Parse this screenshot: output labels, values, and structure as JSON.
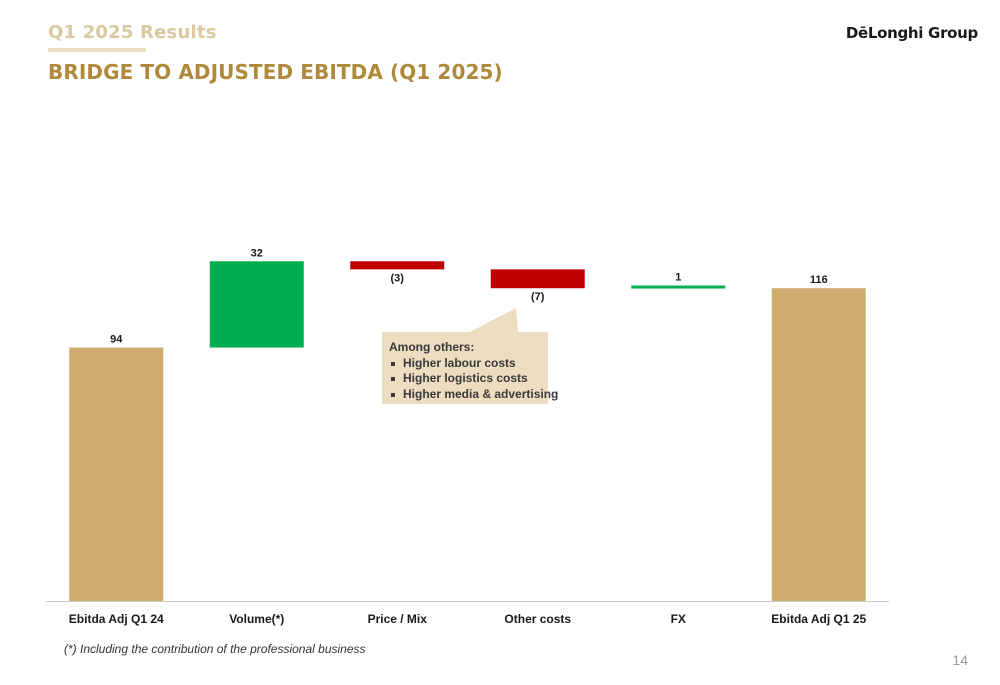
{
  "header": {
    "subtitle": "Q1 2025 Results",
    "title": "BRIDGE TO ADJUSTED EBITDA (Q1 2025)",
    "logo_text": "DēLonghi Group"
  },
  "chart_data": {
    "type": "bar",
    "subtype": "waterfall",
    "categories": [
      "Ebitda Adj Q1 24",
      "Volume(*)",
      "Price / Mix",
      "Other costs",
      "FX",
      "Ebitda Adj Q1 25"
    ],
    "steps": [
      {
        "kind": "total",
        "value": 94,
        "label": "94",
        "color": "#cead6f"
      },
      {
        "kind": "delta",
        "value": 32,
        "label": "32",
        "color": "#00b050"
      },
      {
        "kind": "delta",
        "value": -3,
        "label": "(3)",
        "color": "#c00000"
      },
      {
        "kind": "delta",
        "value": -7,
        "label": "(7)",
        "color": "#c00000"
      },
      {
        "kind": "delta",
        "value": 1,
        "label": "1",
        "color": "#00b050"
      },
      {
        "kind": "total",
        "value": 116,
        "label": "116",
        "color": "#cead6f"
      }
    ],
    "ylim": [
      0,
      135
    ],
    "grid": false,
    "annotation": {
      "heading": "Among others:",
      "items": [
        "Higher labour costs",
        "Higher logistics costs",
        "Higher media & advertising"
      ]
    }
  },
  "footnote": "(*) Including the contribution of the professional business",
  "page_number": "14",
  "colors": {
    "accent_gold": "#b08a3c",
    "subtitle_gold": "#d9c9a0",
    "bar_total": "#cead6f",
    "bar_positive": "#00b050",
    "bar_negative": "#c00000",
    "callout_bg": "#ecdcc0"
  }
}
